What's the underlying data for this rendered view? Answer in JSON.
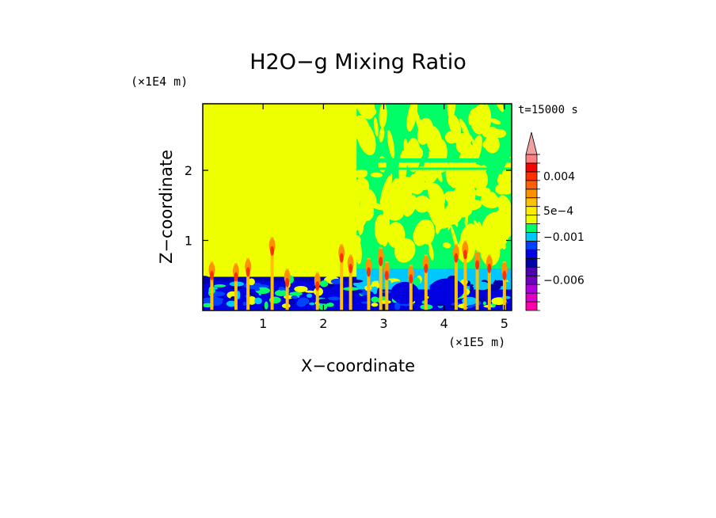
{
  "chart_data": {
    "type": "heatmap",
    "title": "H2O−g Mixing Ratio",
    "xlabel": "X−coordinate",
    "ylabel": "Z−coordinate",
    "x_scale_label": "(×1E5 m)",
    "y_scale_label": "(×1E4 m)",
    "time_label": "t=15000 s",
    "xlim": [
      0,
      5.12
    ],
    "ylim": [
      0,
      2.95
    ],
    "x_ticks": [
      1,
      2,
      3,
      4,
      5
    ],
    "y_ticks": [
      1,
      2
    ],
    "x_tick_labels": [
      "1",
      "2",
      "3",
      "4",
      "5"
    ],
    "y_tick_labels": [
      "1",
      "2"
    ],
    "colorbar": {
      "levels": [
        "−0.009",
        "−0.008",
        "−0.007",
        "−0.006",
        "−0.005",
        "−0.004",
        "−0.003",
        "−0.002",
        "−0.001",
        "−5e-4",
        "0",
        "5e-4",
        "0.001",
        "0.002",
        "0.003",
        "0.004",
        "0.005",
        "0.006"
      ],
      "labels": [
        {
          "text": "0.004",
          "value": 0.004
        },
        {
          "text": "5e−4",
          "value": 0.0005
        },
        {
          "text": "−0.001",
          "value": -0.001
        },
        {
          "text": "−0.006",
          "value": -0.006
        }
      ],
      "colors": [
        "#ff00aa",
        "#e000c8",
        "#b000e0",
        "#7000c0",
        "#5000b0",
        "#0000a8",
        "#0000e0",
        "#0040ff",
        "#00c8ff",
        "#00ff66",
        "#eeff00",
        "#ffee00",
        "#ffc000",
        "#ff9000",
        "#ff6000",
        "#ff3000",
        "#ff0000",
        "#ff8080",
        "#f0a0a0"
      ]
    },
    "regions": [
      {
        "name": "upper-left",
        "value_class": "near-zero",
        "color": "#eeff00"
      },
      {
        "name": "upper-right",
        "value_class": "mixed near-zero and slightly negative",
        "colors": [
          "#00ff66",
          "#eeff00"
        ]
      },
      {
        "name": "boundary-layer",
        "value_class": "negative",
        "colors": [
          "#0000e0",
          "#00c8ff",
          "#00ff66"
        ]
      },
      {
        "name": "plumes",
        "value_class": "positive",
        "colors": [
          "#ff9000",
          "#ff3000",
          "#ff0000"
        ]
      }
    ],
    "grid": false,
    "legend": "right"
  }
}
